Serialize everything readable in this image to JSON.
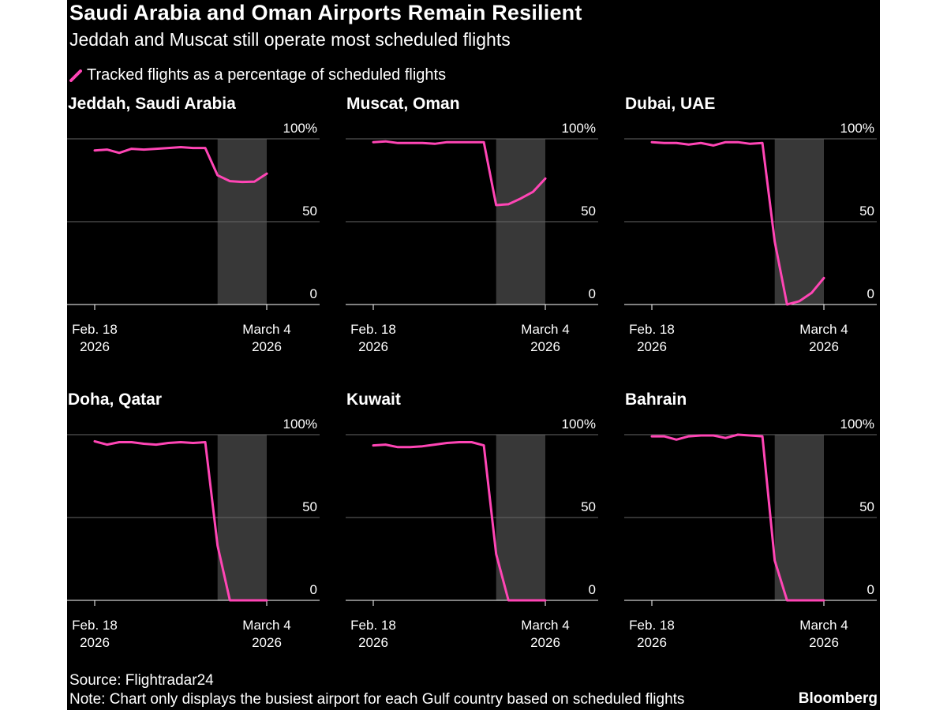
{
  "header": {
    "title": "Saudi Arabia and Oman Airports Remain Resilient",
    "subtitle": "Jeddah and Muscat still operate most scheduled flights",
    "legend_label": "Tracked flights as a percentage of scheduled flights"
  },
  "footer": {
    "source": "Source: Flightradar24",
    "note": "Note: Chart only displays the busiest airport for each Gulf country based on scheduled flights",
    "logo": "Bloomberg"
  },
  "colors": {
    "background": "#000000",
    "line": "#ff45b5",
    "shade": "#383838",
    "grid": "#666666",
    "axis": "#ffffff",
    "text": "#ffffff"
  },
  "chart_data": [
    {
      "type": "line",
      "title": "Jeddah, Saudi Arabia",
      "series_name": "Tracked flights as a percentage of scheduled flights",
      "x": [
        0,
        1,
        2,
        3,
        4,
        5,
        6,
        7,
        8,
        9,
        10,
        11,
        12,
        13,
        14
      ],
      "values": [
        93,
        93.5,
        91.5,
        94,
        93.5,
        94,
        94.5,
        95,
        94.5,
        94.5,
        78,
        74.5,
        74,
        74.2,
        79
      ],
      "ylim": [
        0,
        100
      ],
      "yticks": [
        {
          "value": 100,
          "label": "100%"
        },
        {
          "value": 50,
          "label": "50"
        },
        {
          "value": 0,
          "label": "0"
        }
      ],
      "xticks": [
        {
          "x": 0,
          "line1": "Feb. 18",
          "line2": "2026"
        },
        {
          "x": 14,
          "line1": "March 4",
          "line2": "2026"
        }
      ],
      "shade_range": [
        10,
        14
      ]
    },
    {
      "type": "line",
      "title": "Muscat, Oman",
      "series_name": "Tracked flights as a percentage of scheduled flights",
      "x": [
        0,
        1,
        2,
        3,
        4,
        5,
        6,
        7,
        8,
        9,
        10,
        11,
        12,
        13,
        14
      ],
      "values": [
        98,
        98.5,
        97.5,
        97.5,
        97.5,
        97,
        98,
        98,
        98,
        98,
        60,
        60.5,
        64,
        68,
        76
      ],
      "ylim": [
        0,
        100
      ],
      "yticks": [
        {
          "value": 100,
          "label": "100%"
        },
        {
          "value": 50,
          "label": "50"
        },
        {
          "value": 0,
          "label": "0"
        }
      ],
      "xticks": [
        {
          "x": 0,
          "line1": "Feb. 18",
          "line2": "2026"
        },
        {
          "x": 14,
          "line1": "March 4",
          "line2": "2026"
        }
      ],
      "shade_range": [
        10,
        14
      ]
    },
    {
      "type": "line",
      "title": "Dubai, UAE",
      "series_name": "Tracked flights as a percentage of scheduled flights",
      "x": [
        0,
        1,
        2,
        3,
        4,
        5,
        6,
        7,
        8,
        9,
        10,
        11,
        12,
        13,
        14
      ],
      "values": [
        98,
        97.5,
        97.5,
        96.5,
        97.5,
        96,
        98,
        98,
        97,
        97.5,
        38,
        0,
        2,
        7,
        16
      ],
      "ylim": [
        0,
        100
      ],
      "yticks": [
        {
          "value": 100,
          "label": "100%"
        },
        {
          "value": 50,
          "label": "50"
        },
        {
          "value": 0,
          "label": "0"
        }
      ],
      "xticks": [
        {
          "x": 0,
          "line1": "Feb. 18",
          "line2": "2026"
        },
        {
          "x": 14,
          "line1": "March 4",
          "line2": "2026"
        }
      ],
      "shade_range": [
        10,
        14
      ]
    },
    {
      "type": "line",
      "title": "Doha, Qatar",
      "series_name": "Tracked flights as a percentage of scheduled flights",
      "x": [
        0,
        1,
        2,
        3,
        4,
        5,
        6,
        7,
        8,
        9,
        10,
        11,
        12,
        13,
        14
      ],
      "values": [
        96,
        94,
        95.5,
        95.5,
        94.5,
        94,
        95,
        95.5,
        95,
        95.5,
        33,
        0,
        0,
        0,
        0
      ],
      "ylim": [
        0,
        100
      ],
      "yticks": [
        {
          "value": 100,
          "label": "100%"
        },
        {
          "value": 50,
          "label": "50"
        },
        {
          "value": 0,
          "label": "0"
        }
      ],
      "xticks": [
        {
          "x": 0,
          "line1": "Feb. 18",
          "line2": "2026"
        },
        {
          "x": 14,
          "line1": "March 4",
          "line2": "2026"
        }
      ],
      "shade_range": [
        10,
        14
      ]
    },
    {
      "type": "line",
      "title": "Kuwait",
      "series_name": "Tracked flights as a percentage of scheduled flights",
      "x": [
        0,
        1,
        2,
        3,
        4,
        5,
        6,
        7,
        8,
        9,
        10,
        11,
        12,
        13,
        14
      ],
      "values": [
        93.5,
        94,
        92.5,
        92.5,
        93,
        94,
        95,
        95.5,
        95.5,
        93.5,
        28,
        0,
        0,
        0,
        0
      ],
      "ylim": [
        0,
        100
      ],
      "yticks": [
        {
          "value": 100,
          "label": "100%"
        },
        {
          "value": 50,
          "label": "50"
        },
        {
          "value": 0,
          "label": "0"
        }
      ],
      "xticks": [
        {
          "x": 0,
          "line1": "Feb. 18",
          "line2": "2026"
        },
        {
          "x": 14,
          "line1": "March 4",
          "line2": "2026"
        }
      ],
      "shade_range": [
        10,
        14
      ]
    },
    {
      "type": "line",
      "title": "Bahrain",
      "series_name": "Tracked flights as a percentage of scheduled flights",
      "x": [
        0,
        1,
        2,
        3,
        4,
        5,
        6,
        7,
        8,
        9,
        10,
        11,
        12,
        13,
        14
      ],
      "values": [
        99,
        99,
        97,
        99,
        99.5,
        99.5,
        98,
        100,
        99.5,
        99,
        24,
        0,
        0,
        0,
        0
      ],
      "ylim": [
        0,
        100
      ],
      "yticks": [
        {
          "value": 100,
          "label": "100%"
        },
        {
          "value": 50,
          "label": "50"
        },
        {
          "value": 0,
          "label": "0"
        }
      ],
      "xticks": [
        {
          "x": 0,
          "line1": "Feb. 18",
          "line2": "2026"
        },
        {
          "x": 14,
          "line1": "March 4",
          "line2": "2026"
        }
      ],
      "shade_range": [
        10,
        14
      ]
    }
  ]
}
